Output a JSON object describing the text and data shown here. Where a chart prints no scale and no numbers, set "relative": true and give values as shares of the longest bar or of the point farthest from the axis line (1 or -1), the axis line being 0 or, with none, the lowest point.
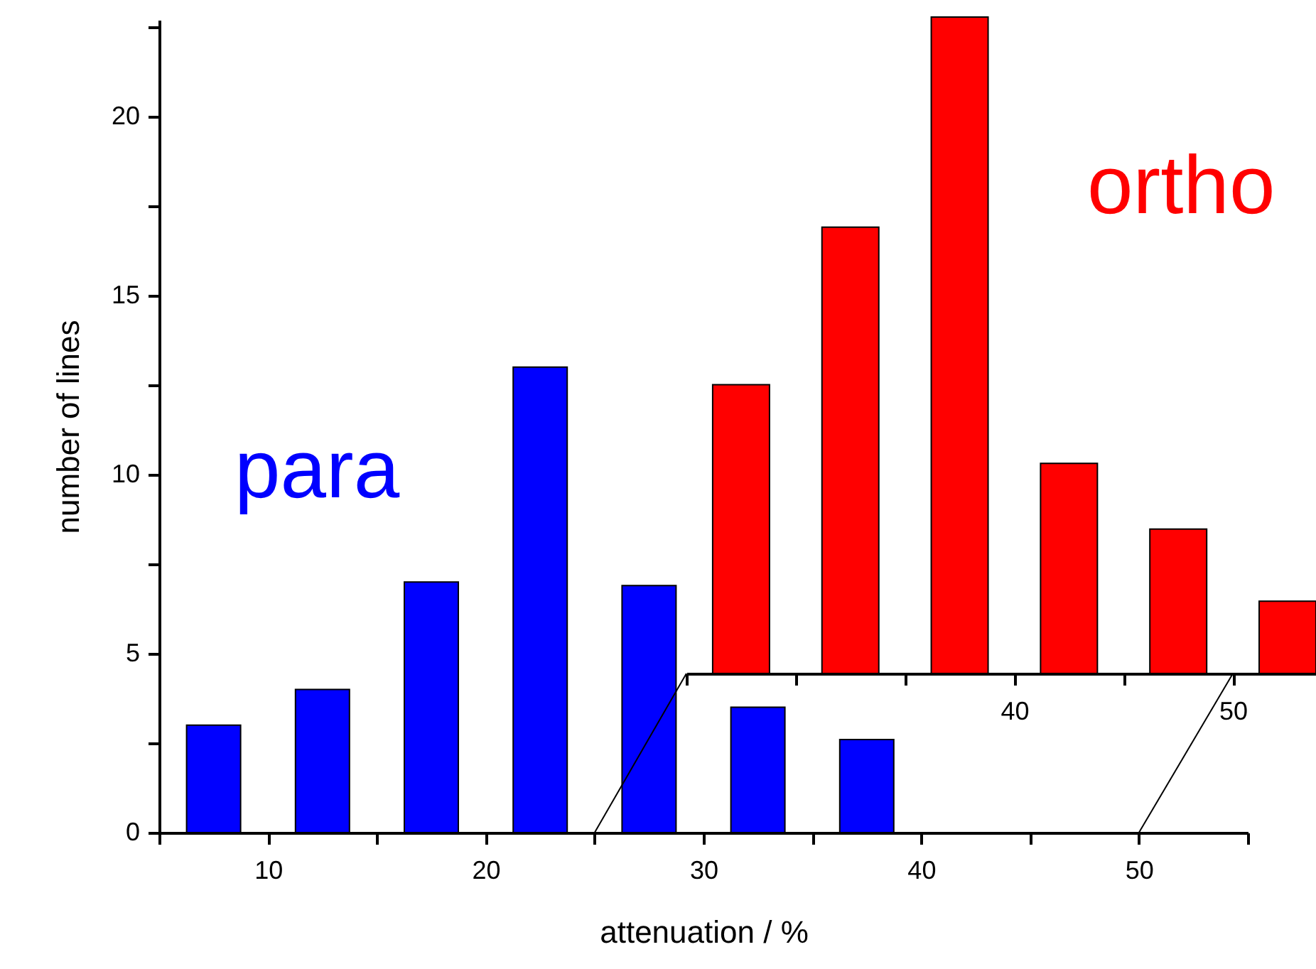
{
  "chart_data": [
    {
      "type": "bar",
      "xlabel": "attenuation / %",
      "ylabel": "number of lines",
      "x": [
        7.5,
        12.5,
        17.5,
        22.5,
        27.5,
        32.5,
        37.5
      ],
      "series": [
        {
          "name": "para",
          "color": "#0000ff",
          "values": [
            3,
            4,
            7,
            13,
            6.9,
            3.5,
            2.6
          ]
        }
      ],
      "xlim": [
        5,
        55
      ],
      "xticks": [
        {
          "value": 5,
          "label": null
        },
        10,
        {
          "value": 15,
          "label": null
        },
        20,
        {
          "value": 25,
          "label": null
        },
        30,
        {
          "value": 35,
          "label": null
        },
        40,
        {
          "value": 45,
          "label": null
        },
        50,
        {
          "value": 55,
          "label": null
        }
      ],
      "ylim": [
        0,
        22.7
      ],
      "yticks": [
        0,
        {
          "value": 2.5,
          "label": null
        },
        5,
        {
          "value": 7.5,
          "label": null
        },
        10,
        {
          "value": 12.5,
          "label": null
        },
        15,
        {
          "value": 17.5,
          "label": null
        },
        20,
        {
          "value": 22.5,
          "label": null
        }
      ]
    },
    {
      "type": "bar",
      "relative": true,
      "tick_labels": "x",
      "x": [
        27.5,
        32.5,
        37.5,
        42.5,
        47.5,
        52.5
      ],
      "series": [
        {
          "name": "ortho",
          "color": "#ff0000",
          "values": [
            0.44,
            0.68,
            1,
            0.32,
            0.22,
            0.11
          ]
        }
      ],
      "xlim": [
        25,
        53.8
      ],
      "xticks": [
        {
          "value": 25,
          "label": null
        },
        {
          "value": 30,
          "label": null
        },
        {
          "value": 35,
          "label": null
        },
        40,
        {
          "value": 45,
          "label": null
        },
        50
      ]
    }
  ]
}
